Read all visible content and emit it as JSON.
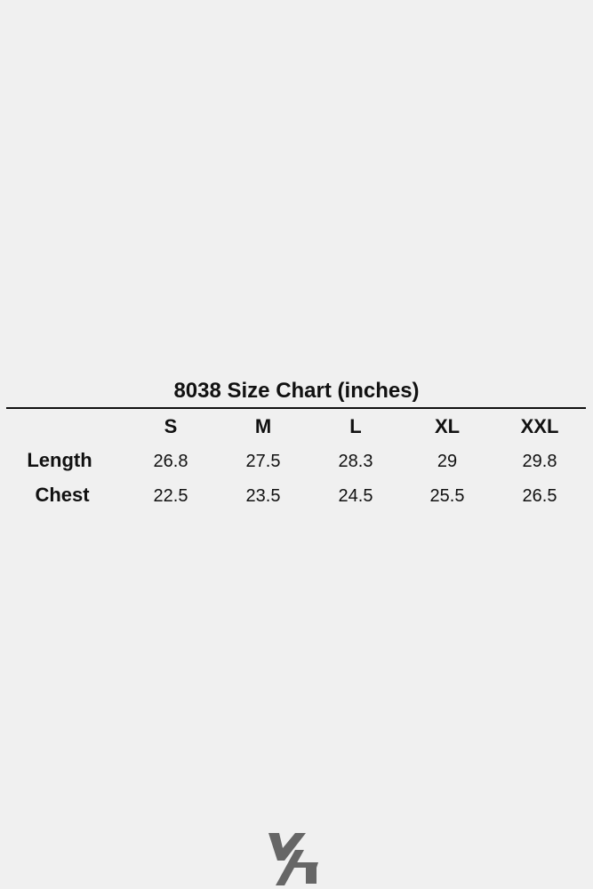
{
  "title": "8038 Size Chart (inches)",
  "sizes": [
    "S",
    "M",
    "L",
    "XL",
    "XXL"
  ],
  "rows": [
    {
      "label": "Length",
      "values": [
        "26.8",
        "27.5",
        "28.3",
        "29",
        "29.8"
      ]
    },
    {
      "label": "Chest",
      "values": [
        "22.5",
        "23.5",
        "24.5",
        "25.5",
        "26.5"
      ]
    }
  ],
  "logo": {
    "text": "YA",
    "color": "#666666"
  }
}
